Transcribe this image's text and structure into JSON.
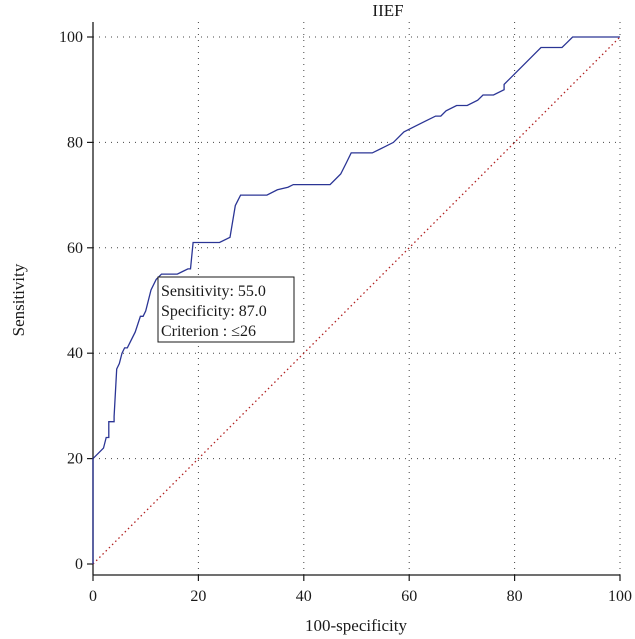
{
  "chart_data": {
    "type": "line",
    "title": "IIEF",
    "xlabel": "100-specificity",
    "ylabel": "Sensitivity",
    "xlim": [
      0,
      100
    ],
    "ylim": [
      0,
      100
    ],
    "x_ticks": [
      0,
      20,
      40,
      60,
      80,
      100
    ],
    "y_ticks": [
      0,
      20,
      40,
      60,
      80,
      100
    ],
    "grid": true,
    "colors": {
      "roc": "#2b3595",
      "reference": "#b22222"
    },
    "series": [
      {
        "x": [
          0,
          0,
          0,
          2,
          2.5,
          3,
          3,
          4,
          4,
          4.5,
          5,
          5.5,
          6,
          6.5,
          7,
          8,
          9,
          9.5,
          10,
          11,
          12,
          13,
          14,
          16,
          17,
          18,
          18.5,
          19,
          21,
          24,
          26,
          27,
          27.5,
          28,
          29,
          30,
          31,
          32,
          33,
          35,
          37,
          38,
          40,
          42,
          45,
          47,
          48,
          49,
          50,
          51,
          52,
          53,
          55,
          57,
          59,
          61,
          63,
          65,
          66,
          67,
          69,
          71,
          73,
          74,
          76,
          78,
          78,
          80,
          82,
          84,
          85,
          87,
          89,
          90,
          91,
          92,
          95,
          100
        ],
        "y": [
          0,
          20,
          20,
          22,
          24,
          24,
          27,
          27,
          28,
          37,
          38,
          40,
          41,
          41,
          42,
          44,
          47,
          47,
          48,
          52,
          54,
          55,
          55,
          55,
          55.5,
          56,
          56,
          61,
          61,
          61,
          62,
          68,
          69,
          70,
          70,
          70,
          70,
          70,
          70,
          71,
          71.5,
          72,
          72,
          72,
          72,
          74,
          76,
          78,
          78,
          78,
          78,
          78,
          79,
          80,
          82,
          83,
          84,
          85,
          85,
          86,
          87,
          87,
          88,
          89,
          89,
          90,
          91,
          93,
          95,
          97,
          98,
          98,
          98,
          99,
          100,
          100,
          100,
          100
        ]
      },
      {
        "x": [
          0,
          100
        ],
        "y": [
          0,
          100
        ]
      }
    ],
    "annotation": {
      "lines": [
        "Sensitivity: 55.0",
        "Specificity: 87.0",
        "Criterion : ≤26"
      ],
      "at": {
        "x": 13,
        "y": 55
      }
    }
  }
}
